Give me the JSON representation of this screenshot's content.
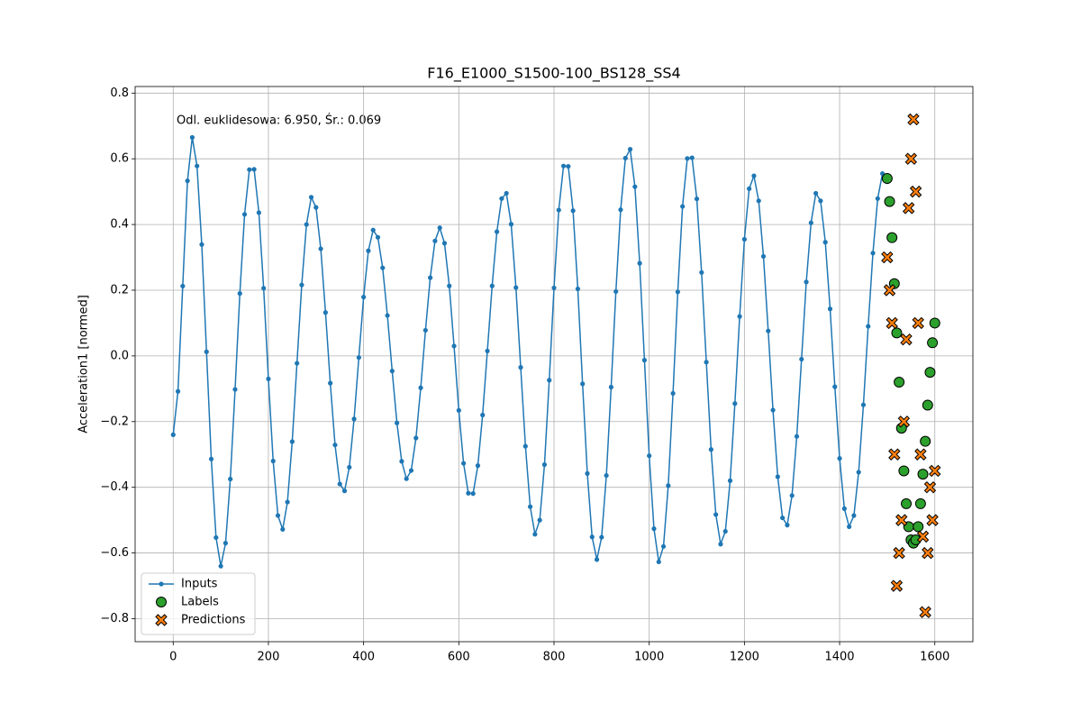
{
  "chart_data": {
    "type": "line",
    "title": "F16_E1000_S1500-100_BS128_SS4",
    "ylabel": "Acceleration1 [normed]",
    "annotation": "Odl. euklidesowa: 6.950, Śr.: 0.069",
    "xlim": [
      -80,
      1680
    ],
    "ylim": [
      -0.87,
      0.82
    ],
    "xticks": [
      0,
      200,
      400,
      600,
      800,
      1000,
      1200,
      1400,
      1600
    ],
    "yticks": [
      {
        "value": -0.8,
        "label": "−0.8"
      },
      {
        "value": -0.6,
        "label": "−0.6"
      },
      {
        "value": -0.4,
        "label": "−0.4"
      },
      {
        "value": -0.2,
        "label": "−0.2"
      },
      {
        "value": 0,
        "label": "0.0"
      },
      0.2,
      0.4,
      0.6,
      0.8
    ],
    "grid": true,
    "legend": "lower left",
    "series": [
      {
        "name": "Inputs",
        "color": "#1f77b4",
        "marker": "o",
        "line": true,
        "x": [
          0,
          10,
          20,
          30,
          40,
          50,
          60,
          70,
          80,
          90,
          100,
          110,
          120,
          130,
          140,
          150,
          160,
          170,
          180,
          190,
          200,
          210,
          220,
          230,
          240,
          250,
          260,
          270,
          280,
          290,
          300,
          310,
          320,
          330,
          340,
          350,
          360,
          370,
          380,
          390,
          400,
          410,
          420,
          430,
          440,
          450,
          460,
          470,
          480,
          490,
          500,
          510,
          520,
          530,
          540,
          550,
          560,
          570,
          580,
          590,
          600,
          610,
          620,
          630,
          640,
          650,
          660,
          670,
          680,
          690,
          700,
          710,
          720,
          730,
          740,
          750,
          760,
          770,
          780,
          790,
          800,
          810,
          820,
          830,
          840,
          850,
          860,
          870,
          880,
          890,
          900,
          910,
          920,
          930,
          940,
          950,
          960,
          970,
          980,
          990,
          1000,
          1010,
          1020,
          1030,
          1040,
          1050,
          1060,
          1070,
          1080,
          1090,
          1100,
          1110,
          1120,
          1130,
          1140,
          1150,
          1160,
          1170,
          1180,
          1190,
          1200,
          1210,
          1220,
          1230,
          1240,
          1250,
          1260,
          1270,
          1280,
          1290,
          1300,
          1310,
          1320,
          1330,
          1340,
          1350,
          1360,
          1370,
          1380,
          1390,
          1400,
          1410,
          1420,
          1430,
          1440,
          1450,
          1460,
          1470,
          1480,
          1490,
          1500
        ],
        "values": [
          -0.24,
          -0.108,
          0.2125,
          0.533,
          0.665,
          0.578,
          0.339,
          0.0125,
          -0.314,
          -0.553,
          -0.64,
          -0.57,
          -0.375,
          -0.102,
          0.19,
          0.431,
          0.567,
          0.568,
          0.436,
          0.206,
          -0.07,
          -0.32,
          -0.486,
          -0.528,
          -0.445,
          -0.261,
          -0.0225,
          0.216,
          0.4,
          0.483,
          0.452,
          0.326,
          0.132,
          -0.083,
          -0.271,
          -0.39,
          -0.411,
          -0.339,
          -0.192,
          -0.005,
          0.179,
          0.32,
          0.383,
          0.361,
          0.268,
          0.123,
          -0.046,
          -0.204,
          -0.321,
          -0.374,
          -0.349,
          -0.25,
          -0.097,
          0.078,
          0.238,
          0.35,
          0.39,
          0.343,
          0.213,
          0.03,
          -0.166,
          -0.327,
          -0.418,
          -0.419,
          -0.334,
          -0.18,
          0.015,
          0.213,
          0.378,
          0.479,
          0.495,
          0.401,
          0.208,
          -0.035,
          -0.275,
          -0.459,
          -0.543,
          -0.5,
          -0.331,
          -0.074,
          0.207,
          0.444,
          0.578,
          0.577,
          0.442,
          0.204,
          -0.085,
          -0.358,
          -0.551,
          -0.62,
          -0.552,
          -0.364,
          -0.095,
          0.196,
          0.445,
          0.602,
          0.629,
          0.515,
          0.282,
          -0.013,
          -0.304,
          -0.526,
          -0.627,
          -0.58,
          -0.395,
          -0.114,
          0.195,
          0.455,
          0.601,
          0.603,
          0.478,
          0.254,
          -0.019,
          -0.285,
          -0.483,
          -0.573,
          -0.534,
          -0.38,
          -0.145,
          0.12,
          0.355,
          0.509,
          0.548,
          0.472,
          0.303,
          0.076,
          -0.165,
          -0.368,
          -0.493,
          -0.515,
          -0.425,
          -0.245,
          -0.01,
          0.225,
          0.405,
          0.495,
          0.472,
          0.346,
          0.143,
          -0.094,
          -0.312,
          -0.465,
          -0.52,
          -0.486,
          -0.354,
          -0.149,
          0.09,
          0.313,
          0.479,
          0.555,
          0.53
        ]
      },
      {
        "name": "Labels",
        "color": "#2ca02c",
        "marker": "o",
        "line": false,
        "x": [
          1500,
          1505,
          1510,
          1515,
          1520,
          1525,
          1530,
          1535,
          1540,
          1545,
          1550,
          1555,
          1560,
          1565,
          1570,
          1575,
          1580,
          1585,
          1590,
          1595,
          1600
        ],
        "values": [
          0.54,
          0.47,
          0.36,
          0.22,
          0.07,
          -0.08,
          -0.22,
          -0.35,
          -0.45,
          -0.52,
          -0.56,
          -0.57,
          -0.56,
          -0.52,
          -0.45,
          -0.36,
          -0.26,
          -0.15,
          -0.05,
          0.04,
          0.1
        ]
      },
      {
        "name": "Predictions",
        "color": "#ff7f0e",
        "marker": "X",
        "line": false,
        "x": [
          1500,
          1505,
          1510,
          1515,
          1520,
          1525,
          1530,
          1535,
          1540,
          1545,
          1550,
          1555,
          1560,
          1565,
          1570,
          1575,
          1580,
          1585,
          1590,
          1595,
          1600
        ],
        "values": [
          0.3,
          0.2,
          0.1,
          -0.3,
          -0.7,
          -0.6,
          -0.5,
          -0.2,
          0.05,
          0.45,
          0.6,
          0.72,
          0.5,
          0.1,
          -0.3,
          -0.55,
          -0.78,
          -0.6,
          -0.4,
          -0.5,
          -0.35
        ]
      }
    ]
  }
}
